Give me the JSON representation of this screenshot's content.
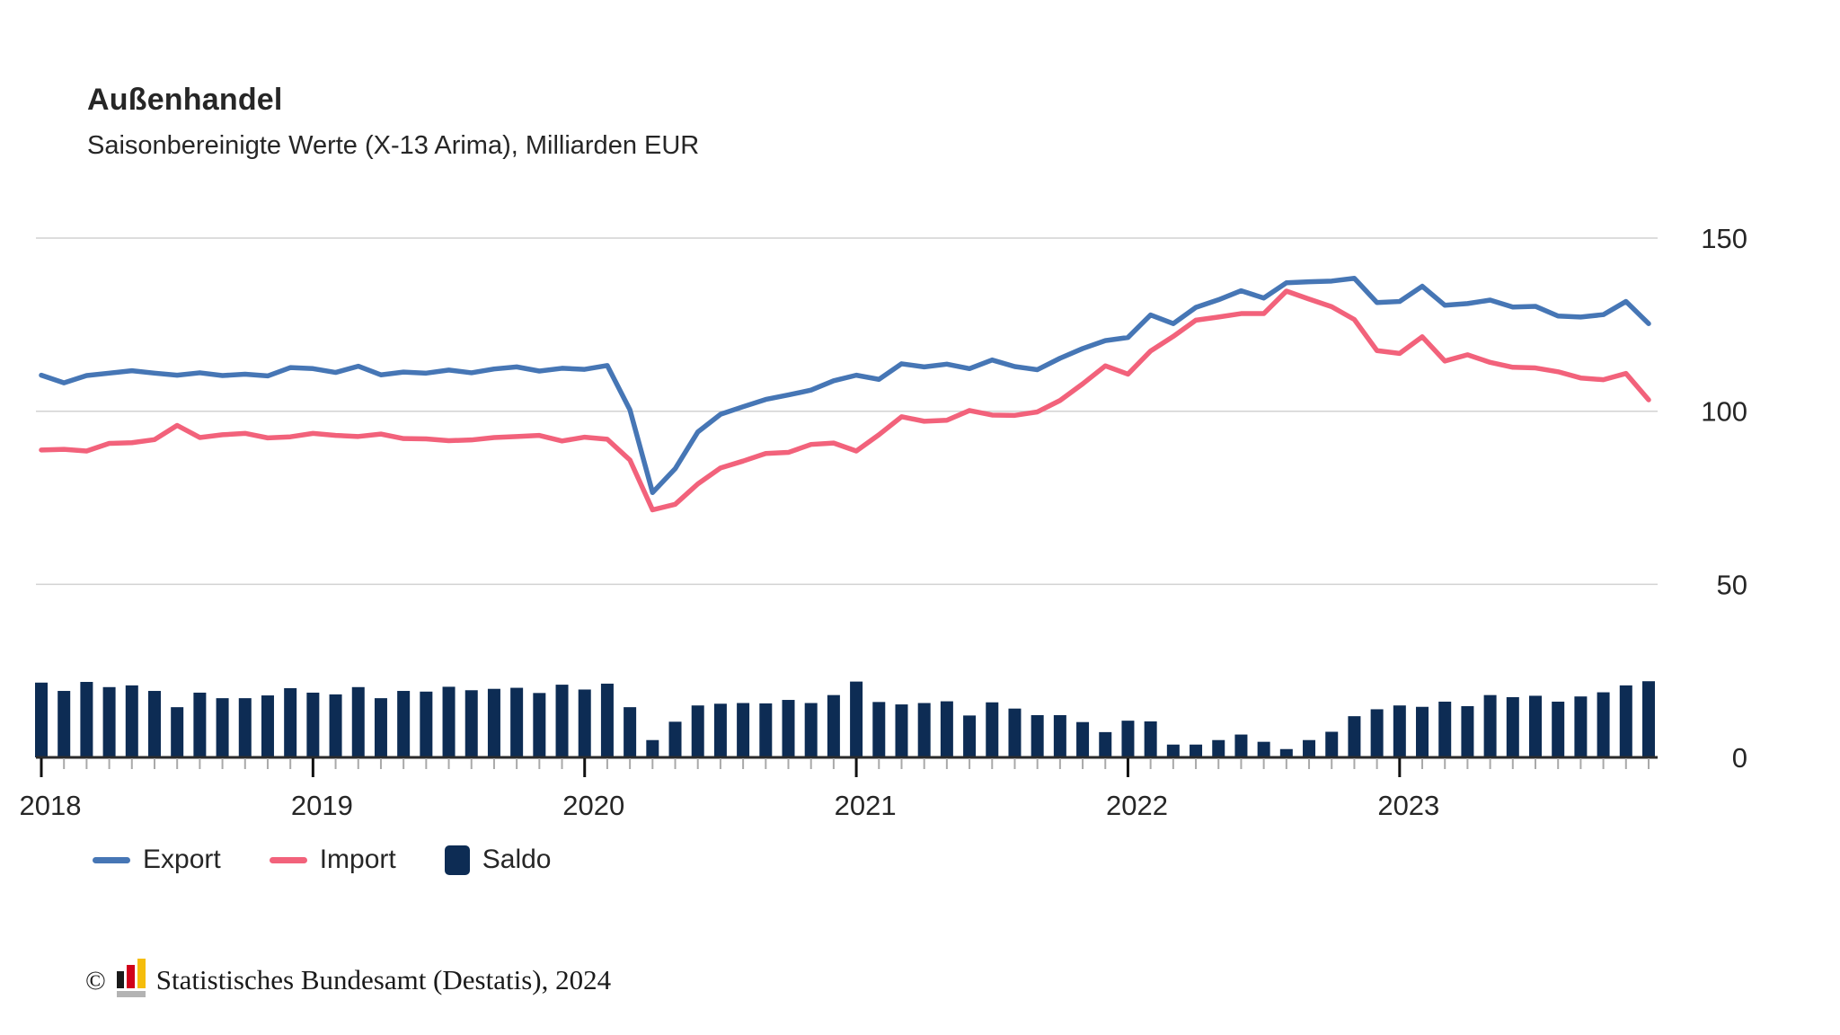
{
  "header": {
    "title": "Außenhandel",
    "subtitle": "Saisonbereinigte Werte (X-13 Arima), Milliarden EUR"
  },
  "colors": {
    "export": "#4676b5",
    "import": "#f2627b",
    "saldo": "#0d2c54",
    "grid": "#d2d2d2",
    "axis": "#2b2b2b",
    "tick_month": "#a9a9a9",
    "tick_year": "#111111",
    "text": "#262626"
  },
  "legend": {
    "export": "Export",
    "import": "Import",
    "saldo": "Saldo"
  },
  "footer": {
    "copyright": "©",
    "text": "Statistisches Bundesamt (Destatis), 2024"
  },
  "chart_data": {
    "type": "line+bar",
    "title": "Außenhandel",
    "subtitle": "Saisonbereinigte Werte (X-13 Arima), Milliarden EUR",
    "unit": "Milliarden EUR",
    "frequency": "monthly",
    "x_start": "2018-01",
    "x_end": "2023-12",
    "x_years": [
      2018,
      2019,
      2020,
      2021,
      2022,
      2023
    ],
    "y_ticks": [
      0,
      50,
      100,
      150
    ],
    "ylim": [
      0,
      150
    ],
    "grid": true,
    "legend_position": "bottom-left",
    "y_axis_side": "right",
    "series": [
      {
        "name": "Export",
        "type": "line",
        "color_key": "export",
        "values": [
          110.4,
          108.2,
          110.3,
          111.0,
          111.7,
          111.0,
          110.4,
          111.1,
          110.3,
          110.7,
          110.2,
          112.6,
          112.3,
          111.2,
          113.0,
          110.5,
          111.3,
          111.0,
          111.9,
          111.1,
          112.2,
          112.8,
          111.6,
          112.4,
          112.1,
          113.2,
          100.4,
          76.5,
          83.4,
          94.0,
          99.1,
          101.3,
          103.4,
          104.7,
          106.1,
          108.8,
          110.4,
          109.2,
          113.7,
          112.8,
          113.6,
          112.3,
          114.8,
          112.9,
          112.0,
          115.3,
          118.1,
          120.4,
          121.3,
          127.8,
          125.3,
          130.0,
          132.2,
          134.8,
          132.7,
          137.1,
          137.4,
          137.6,
          138.4,
          131.4,
          131.7,
          136.1,
          130.6,
          131.1,
          132.1,
          130.1,
          130.3,
          127.5,
          127.2,
          127.9,
          131.7,
          125.3
        ]
      },
      {
        "name": "Import",
        "type": "line",
        "color_key": "import",
        "values": [
          88.8,
          89.0,
          88.5,
          90.7,
          90.9,
          91.8,
          95.9,
          92.4,
          93.2,
          93.6,
          92.3,
          92.6,
          93.6,
          93.0,
          92.7,
          93.4,
          92.1,
          92.0,
          91.5,
          91.7,
          92.4,
          92.7,
          93.0,
          91.4,
          92.5,
          91.9,
          85.9,
          71.5,
          73.1,
          79.0,
          83.6,
          85.6,
          87.8,
          88.1,
          90.4,
          90.8,
          88.5,
          93.2,
          98.4,
          97.1,
          97.4,
          100.2,
          98.9,
          98.8,
          99.8,
          103.1,
          107.9,
          113.1,
          110.7,
          117.4,
          121.6,
          126.3,
          127.2,
          128.2,
          128.2,
          134.7,
          132.4,
          130.2,
          126.5,
          117.5,
          116.7,
          121.5,
          114.5,
          116.3,
          114.1,
          112.7,
          112.5,
          111.4,
          109.6,
          109.1,
          110.9,
          103.3
        ]
      },
      {
        "name": "Saldo",
        "type": "bar",
        "color_key": "saldo",
        "values": [
          21.6,
          19.2,
          21.8,
          20.3,
          20.8,
          19.2,
          14.5,
          18.7,
          17.1,
          17.1,
          17.9,
          20.0,
          18.7,
          18.2,
          20.3,
          17.1,
          19.2,
          19.0,
          20.4,
          19.4,
          19.8,
          20.1,
          18.6,
          21.0,
          19.6,
          21.3,
          14.5,
          5.0,
          10.3,
          15.0,
          15.5,
          15.7,
          15.6,
          16.6,
          15.7,
          18.0,
          21.9,
          16.0,
          15.3,
          15.7,
          16.2,
          12.1,
          15.9,
          14.1,
          12.2,
          12.2,
          10.2,
          7.3,
          10.6,
          10.4,
          3.7,
          3.7,
          5.0,
          6.6,
          4.5,
          2.4,
          5.0,
          7.4,
          11.9,
          13.9,
          15.0,
          14.6,
          16.1,
          14.8,
          18.0,
          17.4,
          17.8,
          16.1,
          17.6,
          18.8,
          20.8,
          22.0
        ]
      }
    ]
  }
}
